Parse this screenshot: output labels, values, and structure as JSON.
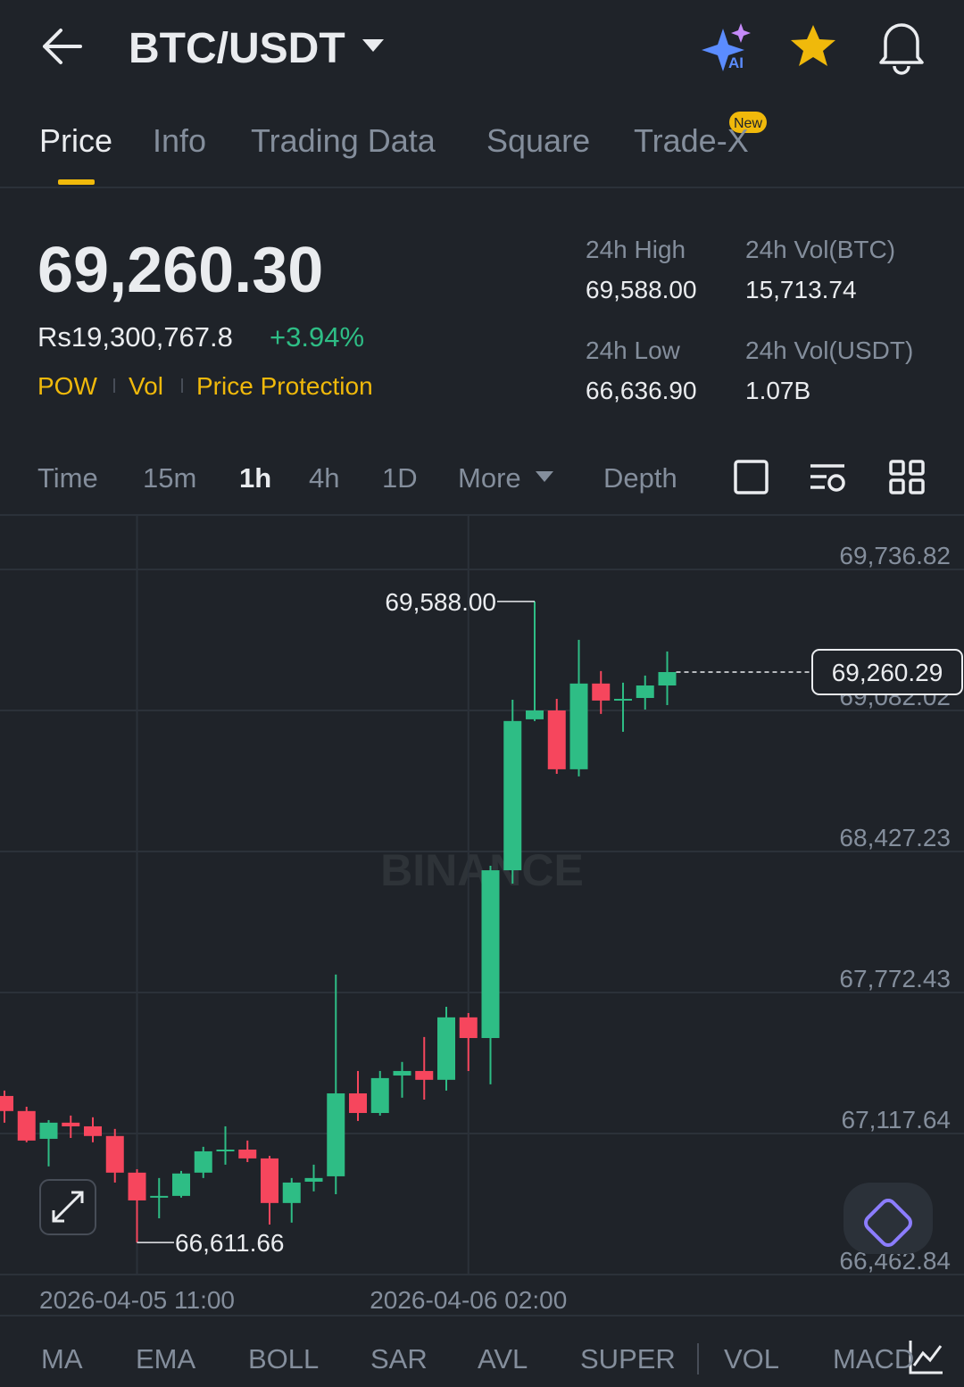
{
  "header": {
    "title": "BTC/USDT",
    "tabs": [
      "Price",
      "Info",
      "Trading Data",
      "Square",
      "Trade-X"
    ],
    "new_badge": "New"
  },
  "ticker": {
    "price": "69,260.30",
    "fiat_price": "Rs19,300,767.8",
    "change": "+3.94%",
    "tags": [
      "POW",
      "Vol",
      "Price Protection"
    ],
    "stats": [
      {
        "label": "24h High",
        "value": "69,588.00"
      },
      {
        "label": "24h Vol(BTC)",
        "value": "15,713.74"
      },
      {
        "label": "24h Low",
        "value": "66,636.90"
      },
      {
        "label": "24h Vol(USDT)",
        "value": "1.07B"
      }
    ]
  },
  "toolbar": {
    "intervals": [
      "Time",
      "15m",
      "1h",
      "4h",
      "1D"
    ],
    "more": "More",
    "depth": "Depth"
  },
  "indicators": [
    "MA",
    "EMA",
    "BOLL",
    "SAR",
    "AVL",
    "SUPER",
    "VOL",
    "MACD"
  ],
  "watermark": "BINANCE",
  "chart_data": {
    "type": "candlestick",
    "categories": [
      null,
      null,
      null,
      null,
      null,
      null,
      "2026-04-05 11:00",
      null,
      null,
      null,
      null,
      null,
      null,
      null,
      null,
      null,
      null,
      null,
      null,
      null,
      null,
      "2026-04-06 02:00",
      null,
      null,
      null,
      null,
      null,
      null,
      null,
      null,
      null
    ],
    "open": [
      67292,
      67222,
      67093,
      67168,
      67151,
      67106,
      66936,
      66820,
      66828,
      66936,
      67035,
      67043,
      67002,
      66795,
      66894,
      66919,
      67304,
      67213,
      67387,
      67408,
      67367,
      67657,
      67561,
      68340,
      69041,
      69082,
      68809,
      69207,
      69128,
      69140,
      69198
    ],
    "high": [
      67317,
      67242,
      67180,
      67201,
      67193,
      67139,
      66952,
      66911,
      66944,
      67056,
      67151,
      67085,
      67014,
      66911,
      66973,
      67856,
      67408,
      67408,
      67450,
      67566,
      67706,
      67677,
      68361,
      69132,
      69588,
      69136,
      69410,
      69265,
      69211,
      69244,
      69356
    ],
    "low": [
      67168,
      67077,
      66965,
      67097,
      67077,
      66890,
      66611.66,
      66724,
      66820,
      66911,
      66973,
      66985,
      66695,
      66704,
      66849,
      66836,
      67176,
      67201,
      67284,
      67275,
      67317,
      67408,
      67346,
      68278,
      69033,
      68788,
      68776,
      69066,
      68983,
      69086,
      69107
    ],
    "close": [
      67222,
      67085,
      67168,
      67151,
      67106,
      66936,
      66807,
      66828,
      66932,
      67035,
      67043,
      67002,
      66795,
      66890,
      66911,
      67304,
      67213,
      67375,
      67408,
      67367,
      67657,
      67561,
      68340,
      69033,
      69082,
      68809,
      69207,
      69128,
      69136,
      69198,
      69260.29
    ],
    "up_color": "#2ebd85",
    "down_color": "#f6465d",
    "ylim": [
      66462.84,
      69985.5
    ],
    "yticks": [
      {
        "value": 66462.84,
        "label": "66,462.84"
      },
      {
        "value": 67117.64,
        "label": "67,117.64"
      },
      {
        "value": 67772.43,
        "label": "67,772.43"
      },
      {
        "value": 68427.23,
        "label": "68,427.23"
      },
      {
        "value": 69082.02,
        "label": "69,082.02"
      },
      {
        "value": 69736.82,
        "label": "69,736.82"
      }
    ],
    "grid": true,
    "annotations": {
      "high": {
        "value": 69588,
        "label": "69,588.00"
      },
      "low": {
        "value": 66611.66,
        "label": "66,611.66"
      },
      "last": {
        "value": 69260.29,
        "label": "69,260.29"
      }
    }
  }
}
